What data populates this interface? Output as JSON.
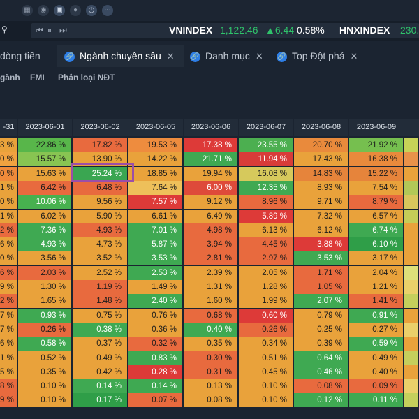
{
  "toolbar": {
    "icons": [
      "grid-icon",
      "coin-icon",
      "camera-icon",
      "record-icon",
      "clock-icon",
      "more-icon"
    ]
  },
  "ticker": {
    "items": [
      {
        "name": "VNINDEX",
        "value": "1,122.46",
        "change": "▲6.44",
        "percent": "0.58%"
      },
      {
        "name": "HNXINDEX",
        "value": "230."
      }
    ],
    "colors": {
      "up": "#2fc36b"
    }
  },
  "tabs": [
    {
      "label": "dòng tiền"
    },
    {
      "label": "Ngành chuyên sâu"
    },
    {
      "label": "Danh mục"
    },
    {
      "label": "Top Đột phá"
    }
  ],
  "subtabs": [
    "gành",
    "FMI",
    "Phân loại NĐT"
  ],
  "grid": {
    "headers": [
      "-31",
      "2023-06-01",
      "2023-06-02",
      "2023-06-05",
      "2023-06-06",
      "2023-06-07",
      "2023-06-08",
      "2023-06-09",
      ""
    ],
    "rows": [
      [
        "3 %",
        "22.86 %",
        "17.82 %",
        "19.53 %",
        "17.38 %",
        "23.55 %",
        "20.70 %",
        "21.92 %",
        ""
      ],
      [
        "0 %",
        "15.57 %",
        "13.90 %",
        "14.22 %",
        "21.71 %",
        "11.94 %",
        "17.43 %",
        "16.38 %",
        ""
      ],
      [
        "0 %",
        "15.63 %",
        "25.24 %",
        "18.85 %",
        "19.94 %",
        "16.08 %",
        "14.83 %",
        "15.22 %",
        ""
      ],
      [
        "1 %",
        "6.42 %",
        "6.48 %",
        "7.64 %",
        "6.00 %",
        "12.35 %",
        "8.93 %",
        "7.54 %",
        ""
      ],
      [
        "0 %",
        "10.06 %",
        "9.56 %",
        "7.57 %",
        "9.12 %",
        "8.96 %",
        "9.71 %",
        "8.79 %",
        ""
      ],
      [
        "1 %",
        "6.02 %",
        "5.90 %",
        "6.61 %",
        "6.49 %",
        "5.89 %",
        "7.32 %",
        "6.57 %",
        ""
      ],
      [
        "2 %",
        "7.36 %",
        "4.93 %",
        "7.01 %",
        "4.98 %",
        "6.13 %",
        "6.12 %",
        "6.74 %",
        ""
      ],
      [
        "6 %",
        "4.93 %",
        "4.73 %",
        "5.87 %",
        "3.94 %",
        "4.45 %",
        "3.88 %",
        "6.10 %",
        ""
      ],
      [
        "0 %",
        "3.56 %",
        "3.52 %",
        "3.53 %",
        "2.81 %",
        "2.97 %",
        "3.53 %",
        "3.17 %",
        ""
      ],
      [
        "6 %",
        "2.03 %",
        "2.52 %",
        "2.53 %",
        "2.39 %",
        "2.05 %",
        "1.71 %",
        "2.04 %",
        ""
      ],
      [
        "9 %",
        "1.30 %",
        "1.19 %",
        "1.49 %",
        "1.31 %",
        "1.28 %",
        "1.05 %",
        "1.21 %",
        ""
      ],
      [
        "2 %",
        "1.65 %",
        "1.48 %",
        "2.40 %",
        "1.60 %",
        "1.99 %",
        "2.07 %",
        "1.41 %",
        ""
      ],
      [
        "7 %",
        "0.93 %",
        "0.75 %",
        "0.76 %",
        "0.68 %",
        "0.60 %",
        "0.79 %",
        "0.91 %",
        ""
      ],
      [
        "7 %",
        "0.26 %",
        "0.38 %",
        "0.36 %",
        "0.40 %",
        "0.26 %",
        "0.25 %",
        "0.27 %",
        ""
      ],
      [
        "6 %",
        "0.58 %",
        "0.37 %",
        "0.32 %",
        "0.35 %",
        "0.34 %",
        "0.39 %",
        "0.59 %",
        ""
      ],
      [
        "1 %",
        "0.52 %",
        "0.49 %",
        "0.83 %",
        "0.30 %",
        "0.51 %",
        "0.64 %",
        "0.49 %",
        ""
      ],
      [
        "5 %",
        "0.35 %",
        "0.42 %",
        "0.28 %",
        "0.31 %",
        "0.45 %",
        "0.46 %",
        "0.40 %",
        ""
      ],
      [
        "8 %",
        "0.10 %",
        "0.14 %",
        "0.14 %",
        "0.13 %",
        "0.10 %",
        "0.08 %",
        "0.09 %",
        ""
      ],
      [
        "9 %",
        "0.10 %",
        "0.17 %",
        "0.07 %",
        "0.08 %",
        "0.10 %",
        "0.12 %",
        "0.11 %",
        ""
      ]
    ],
    "colors": [
      [
        "#e9a23b",
        "#58b64a",
        "#e86a3e",
        "#ee8c3e",
        "#dd3a38",
        "#4caf50",
        "#e98a3c",
        "#76bf4f",
        "#c7d257"
      ],
      [
        "#f1a240",
        "#88c452",
        "#e9a23b",
        "#e9a23b",
        "#3fa952",
        "#d83c39",
        "#e9a23b",
        "#e98a3c",
        "#e8924a"
      ],
      [
        "#f08a3a",
        "#e9a23b",
        "#3aa651",
        "#e9a23b",
        "#e9a23b",
        "#d6c95c",
        "#e6843b",
        "#e6843b",
        "#e9a23b"
      ],
      [
        "#e9a23b",
        "#e86a3e",
        "#e86a3e",
        "#eec05a",
        "#de4a3a",
        "#3fa952",
        "#e9a23b",
        "#e9a23b",
        "#b2c857"
      ],
      [
        "#e9a23b",
        "#47b14f",
        "#e9a23b",
        "#dd3a38",
        "#e9a23b",
        "#e86a3e",
        "#e9a23b",
        "#e86a3e",
        "#d8c55c"
      ],
      [
        "#e9a23b",
        "#e9a23b",
        "#e9a23b",
        "#e9a23b",
        "#e9a23b",
        "#dd3a38",
        "#e9a23b",
        "#e9a23b",
        "#c4cc57"
      ],
      [
        "#e86a3e",
        "#3fa952",
        "#e86a3e",
        "#3fa952",
        "#e86a3e",
        "#e9a23b",
        "#e9a23b",
        "#3fa952",
        "#e9a23b"
      ],
      [
        "#e9a23b",
        "#3fa952",
        "#e9a23b",
        "#3fa952",
        "#e86a3e",
        "#e86a3e",
        "#dd3a38",
        "#2f9e48",
        "#e9a23b"
      ],
      [
        "#e9a23b",
        "#e9a23b",
        "#e9a23b",
        "#3fa952",
        "#e86a3e",
        "#e86a3e",
        "#3fa952",
        "#e9a23b",
        "#e9a23b"
      ],
      [
        "#e86a3e",
        "#e86a3e",
        "#e9a23b",
        "#3fa952",
        "#e9a23b",
        "#e9a23b",
        "#e86a3e",
        "#e9a23b",
        "#dde07a"
      ],
      [
        "#e9a23b",
        "#e9a23b",
        "#e86a3e",
        "#e9a23b",
        "#e9a23b",
        "#e9a23b",
        "#e86a3e",
        "#e9a23b",
        "#ead06a"
      ],
      [
        "#e86a3e",
        "#e9a23b",
        "#e86a3e",
        "#3fa952",
        "#e9a23b",
        "#e9a23b",
        "#3fa952",
        "#e86a3e",
        "#c5cf5c"
      ],
      [
        "#e9a23b",
        "#3fa952",
        "#e9a23b",
        "#e9a23b",
        "#e86a3e",
        "#dd3a38",
        "#e9a23b",
        "#3fa952",
        "#e9a23b"
      ],
      [
        "#e9a23b",
        "#e86a3e",
        "#3fa952",
        "#e9a23b",
        "#3fa952",
        "#e86a3e",
        "#e9a23b",
        "#e9a23b",
        "#ead06a"
      ],
      [
        "#e9a23b",
        "#3fa952",
        "#e9a23b",
        "#e86a3e",
        "#e9a23b",
        "#e9a23b",
        "#e9a23b",
        "#3fa952",
        "#e9a23b"
      ],
      [
        "#e9a23b",
        "#e9a23b",
        "#e9a23b",
        "#3fa952",
        "#e86a3e",
        "#e9a23b",
        "#3fa952",
        "#e9a23b",
        "#c5cf5c"
      ],
      [
        "#e9a23b",
        "#e9a23b",
        "#e9a23b",
        "#dd3a38",
        "#e86a3e",
        "#e9a23b",
        "#3fa952",
        "#e9a23b",
        "#e9a23b"
      ],
      [
        "#e86a3e",
        "#e9a23b",
        "#3fa952",
        "#3fa952",
        "#e9a23b",
        "#e9a23b",
        "#e86a3e",
        "#e86a3e",
        "#ead06a"
      ],
      [
        "#e86a3e",
        "#e9a23b",
        "#2f9e48",
        "#e86a3e",
        "#e9a23b",
        "#e9a23b",
        "#3fa952",
        "#3fa952",
        "#c5cf5c"
      ]
    ],
    "highlight_cell": "25.24 %"
  }
}
